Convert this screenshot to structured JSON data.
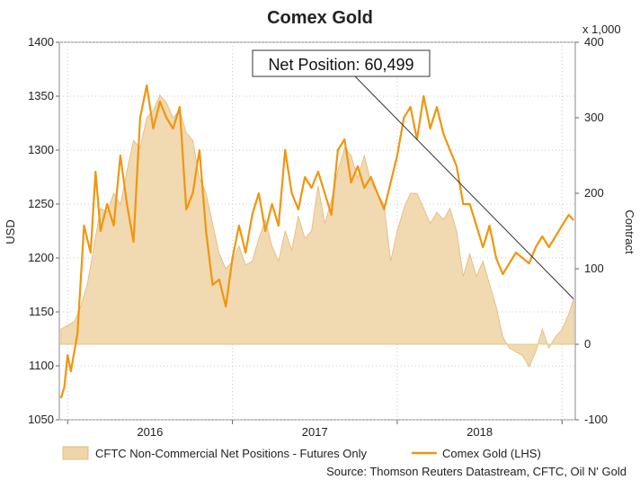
{
  "chart_data": {
    "type": "line",
    "title": "Comex Gold",
    "ylabel": "USD",
    "y2label": "Contract",
    "y2_multiplier_label": "x 1,000",
    "ylim": [
      1050,
      1400
    ],
    "y2lim": [
      -100,
      400
    ],
    "yticks": [
      "1400",
      "1350",
      "1300",
      "1250",
      "1200",
      "1150",
      "1100",
      "1050"
    ],
    "y2ticks": [
      "400",
      "300",
      "200",
      "100",
      "0",
      "-100"
    ],
    "xlim": [
      2015.45,
      2018.58
    ],
    "xticks": [
      {
        "value": 2016.0,
        "label": "2016"
      },
      {
        "value": 2017.0,
        "label": "2017"
      },
      {
        "value": 2018.0,
        "label": "2018"
      }
    ],
    "xgrid": [
      2015.5,
      2016.5,
      2017.5,
      2018.5
    ],
    "annotation": "Net Position: 60,499",
    "source": "Source: Thomson Reuters Datastream, CFTC, Oil N' Gold",
    "series": [
      {
        "name": "CFTC Non-Commercial Net Positions - Futures Only",
        "axis": "right",
        "kind": "area",
        "color": "#f0d5a8",
        "points": [
          [
            2015.46,
            20
          ],
          [
            2015.5,
            25
          ],
          [
            2015.54,
            30
          ],
          [
            2015.58,
            50
          ],
          [
            2015.62,
            80
          ],
          [
            2015.66,
            130
          ],
          [
            2015.7,
            180
          ],
          [
            2015.74,
            175
          ],
          [
            2015.78,
            200
          ],
          [
            2015.82,
            185
          ],
          [
            2015.86,
            230
          ],
          [
            2015.9,
            270
          ],
          [
            2015.94,
            260
          ],
          [
            2015.98,
            300
          ],
          [
            2016.02,
            310
          ],
          [
            2016.06,
            330
          ],
          [
            2016.1,
            320
          ],
          [
            2016.14,
            300
          ],
          [
            2016.18,
            310
          ],
          [
            2016.22,
            280
          ],
          [
            2016.26,
            270
          ],
          [
            2016.3,
            220
          ],
          [
            2016.34,
            200
          ],
          [
            2016.38,
            160
          ],
          [
            2016.42,
            120
          ],
          [
            2016.46,
            100
          ],
          [
            2016.5,
            110
          ],
          [
            2016.54,
            130
          ],
          [
            2016.58,
            105
          ],
          [
            2016.62,
            110
          ],
          [
            2016.66,
            140
          ],
          [
            2016.7,
            165
          ],
          [
            2016.74,
            130
          ],
          [
            2016.78,
            110
          ],
          [
            2016.82,
            150
          ],
          [
            2016.86,
            125
          ],
          [
            2016.9,
            170
          ],
          [
            2016.94,
            140
          ],
          [
            2016.98,
            150
          ],
          [
            2017.02,
            210
          ],
          [
            2017.06,
            160
          ],
          [
            2017.1,
            190
          ],
          [
            2017.14,
            230
          ],
          [
            2017.18,
            260
          ],
          [
            2017.22,
            250
          ],
          [
            2017.26,
            220
          ],
          [
            2017.3,
            250
          ],
          [
            2017.34,
            215
          ],
          [
            2017.38,
            200
          ],
          [
            2017.42,
            185
          ],
          [
            2017.46,
            110
          ],
          [
            2017.5,
            150
          ],
          [
            2017.54,
            180
          ],
          [
            2017.58,
            200
          ],
          [
            2017.62,
            200
          ],
          [
            2017.66,
            180
          ],
          [
            2017.7,
            160
          ],
          [
            2017.74,
            175
          ],
          [
            2017.78,
            165
          ],
          [
            2017.82,
            180
          ],
          [
            2017.86,
            150
          ],
          [
            2017.9,
            90
          ],
          [
            2017.94,
            120
          ],
          [
            2017.98,
            90
          ],
          [
            2018.02,
            110
          ],
          [
            2018.06,
            80
          ],
          [
            2018.1,
            50
          ],
          [
            2018.14,
            10
          ],
          [
            2018.18,
            -5
          ],
          [
            2018.22,
            -10
          ],
          [
            2018.26,
            -15
          ],
          [
            2018.3,
            -30
          ],
          [
            2018.34,
            -10
          ],
          [
            2018.38,
            20
          ],
          [
            2018.42,
            -5
          ],
          [
            2018.46,
            10
          ],
          [
            2018.5,
            20
          ],
          [
            2018.54,
            40
          ],
          [
            2018.57,
            60
          ]
        ]
      },
      {
        "name": "Comex Gold (LHS)",
        "axis": "left",
        "kind": "line",
        "color": "#f0960f",
        "points": [
          [
            2015.46,
            1070
          ],
          [
            2015.48,
            1080
          ],
          [
            2015.5,
            1110
          ],
          [
            2015.52,
            1095
          ],
          [
            2015.56,
            1130
          ],
          [
            2015.6,
            1230
          ],
          [
            2015.64,
            1205
          ],
          [
            2015.67,
            1280
          ],
          [
            2015.7,
            1225
          ],
          [
            2015.74,
            1250
          ],
          [
            2015.78,
            1230
          ],
          [
            2015.82,
            1295
          ],
          [
            2015.86,
            1250
          ],
          [
            2015.9,
            1215
          ],
          [
            2015.94,
            1330
          ],
          [
            2015.98,
            1360
          ],
          [
            2016.02,
            1320
          ],
          [
            2016.06,
            1345
          ],
          [
            2016.1,
            1330
          ],
          [
            2016.14,
            1320
          ],
          [
            2016.18,
            1340
          ],
          [
            2016.22,
            1245
          ],
          [
            2016.26,
            1260
          ],
          [
            2016.3,
            1300
          ],
          [
            2016.34,
            1225
          ],
          [
            2016.38,
            1175
          ],
          [
            2016.42,
            1180
          ],
          [
            2016.46,
            1155
          ],
          [
            2016.5,
            1200
          ],
          [
            2016.54,
            1230
          ],
          [
            2016.58,
            1205
          ],
          [
            2016.62,
            1240
          ],
          [
            2016.66,
            1260
          ],
          [
            2016.7,
            1225
          ],
          [
            2016.74,
            1250
          ],
          [
            2016.78,
            1230
          ],
          [
            2016.82,
            1300
          ],
          [
            2016.86,
            1260
          ],
          [
            2016.9,
            1245
          ],
          [
            2016.94,
            1275
          ],
          [
            2016.98,
            1265
          ],
          [
            2017.02,
            1280
          ],
          [
            2017.06,
            1260
          ],
          [
            2017.1,
            1240
          ],
          [
            2017.14,
            1300
          ],
          [
            2017.18,
            1310
          ],
          [
            2017.22,
            1270
          ],
          [
            2017.26,
            1285
          ],
          [
            2017.3,
            1265
          ],
          [
            2017.34,
            1275
          ],
          [
            2017.38,
            1260
          ],
          [
            2017.42,
            1245
          ],
          [
            2017.46,
            1270
          ],
          [
            2017.5,
            1295
          ],
          [
            2017.54,
            1330
          ],
          [
            2017.58,
            1340
          ],
          [
            2017.62,
            1310
          ],
          [
            2017.66,
            1350
          ],
          [
            2017.7,
            1320
          ],
          [
            2017.74,
            1340
          ],
          [
            2017.78,
            1315
          ],
          [
            2017.82,
            1300
          ],
          [
            2017.86,
            1285
          ],
          [
            2017.9,
            1250
          ],
          [
            2017.94,
            1250
          ],
          [
            2017.98,
            1230
          ],
          [
            2018.02,
            1210
          ],
          [
            2018.06,
            1230
          ],
          [
            2018.1,
            1200
          ],
          [
            2018.14,
            1185
          ],
          [
            2018.18,
            1195
          ],
          [
            2018.22,
            1205
          ],
          [
            2018.26,
            1200
          ],
          [
            2018.3,
            1195
          ],
          [
            2018.34,
            1210
          ],
          [
            2018.38,
            1220
          ],
          [
            2018.42,
            1210
          ],
          [
            2018.46,
            1220
          ],
          [
            2018.5,
            1230
          ],
          [
            2018.54,
            1240
          ],
          [
            2018.57,
            1235
          ]
        ]
      }
    ]
  }
}
